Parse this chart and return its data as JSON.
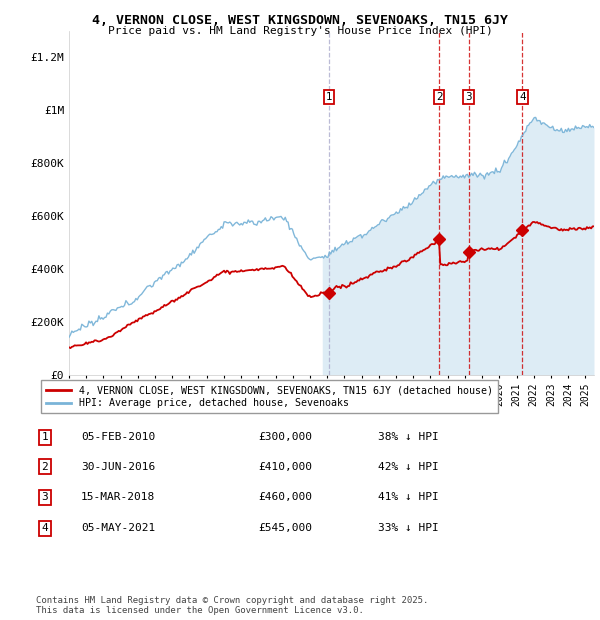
{
  "title": "4, VERNON CLOSE, WEST KINGSDOWN, SEVENOAKS, TN15 6JY",
  "subtitle": "Price paid vs. HM Land Registry's House Price Index (HPI)",
  "ylim": [
    0,
    1300000
  ],
  "yticks": [
    0,
    200000,
    400000,
    600000,
    800000,
    1000000,
    1200000
  ],
  "ytick_labels": [
    "£0",
    "£200K",
    "£400K",
    "£600K",
    "£800K",
    "£1M",
    "£1.2M"
  ],
  "hpi_color": "#7ab4d8",
  "price_color": "#cc0000",
  "vline_color_gray": "#aaaacc",
  "vline_color_red": "#cc0000",
  "transactions": [
    {
      "label": "1",
      "date_num": 2010.09,
      "price": 300000,
      "pct": "38%",
      "date_str": "05-FEB-2010",
      "vline": "gray"
    },
    {
      "label": "2",
      "date_num": 2016.5,
      "price": 410000,
      "pct": "42%",
      "date_str": "30-JUN-2016",
      "vline": "red"
    },
    {
      "label": "3",
      "date_num": 2018.21,
      "price": 460000,
      "pct": "41%",
      "date_str": "15-MAR-2018",
      "vline": "red"
    },
    {
      "label": "4",
      "date_num": 2021.34,
      "price": 545000,
      "pct": "33%",
      "date_str": "05-MAY-2021",
      "vline": "red"
    }
  ],
  "legend_label_price": "4, VERNON CLOSE, WEST KINGSDOWN, SEVENOAKS, TN15 6JY (detached house)",
  "legend_label_hpi": "HPI: Average price, detached house, Sevenoaks",
  "footnote": "Contains HM Land Registry data © Crown copyright and database right 2025.\nThis data is licensed under the Open Government Licence v3.0.",
  "xmin": 1995.0,
  "xmax": 2025.5,
  "fill_start": 2009.67,
  "fill_end": 2025.5,
  "marker_y": 1050000
}
